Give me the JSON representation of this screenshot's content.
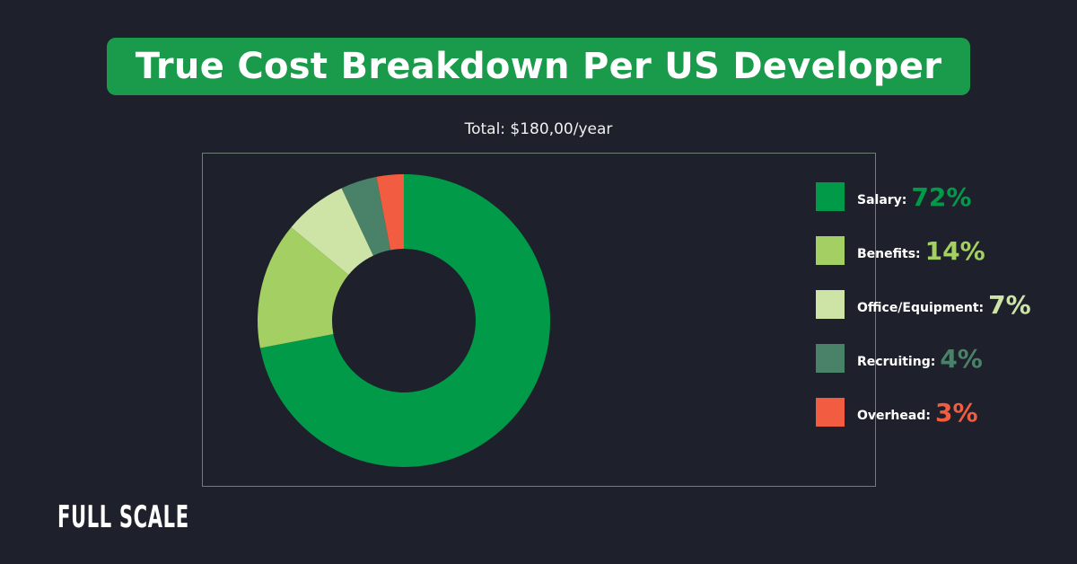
{
  "title": "True Cost Breakdown Per US Developer",
  "chart_data": {
    "type": "pie",
    "variant": "donut",
    "subtitle": "Total: $180,00/year",
    "legend_position": "right",
    "slices": [
      {
        "name": "Salary:",
        "value": 72,
        "label": "72%",
        "color": "#009a48"
      },
      {
        "name": "Benefits:",
        "value": 14,
        "label": "14%",
        "color": "#a4cf62"
      },
      {
        "name": "Office/Equipment:",
        "value": 7,
        "label": "7%",
        "color": "#cde4a6"
      },
      {
        "name": "Recruiting:",
        "value": 4,
        "label": "4%",
        "color": "#4a8169"
      },
      {
        "name": "Overhead:",
        "value": 3,
        "label": "3%",
        "color": "#f25c40"
      }
    ]
  },
  "logo": "FULL SCALE"
}
